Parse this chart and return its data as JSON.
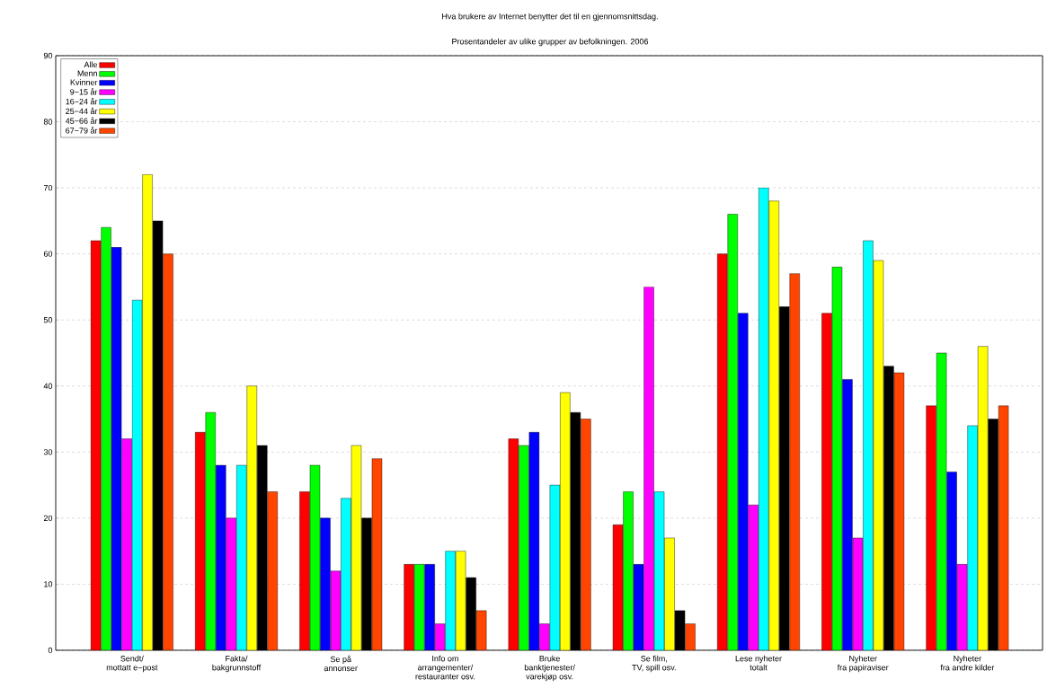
{
  "chart_data": {
    "type": "bar",
    "title": "Hva brukere av  Internet benytter det til en gjennomsnittsdag.",
    "subtitle": "Prosentandeler av ulike grupper av befolkningen. 2006",
    "categories": [
      "Sendt/\nmottatt e−post",
      "Fakta/\nbakgrunnstoff",
      "Se på\nannonser",
      "Info om\narrangementer/\nrestauranter osv.",
      "Bruke\nbanktjenester/\nvarekjøp osv.",
      "Se film,\nTV, spill osv.",
      "Lese nyheter\ntotalt",
      "Nyheter\nfra papiraviser",
      "Nyheter\nfra andre kilder"
    ],
    "series": [
      {
        "name": "Alle",
        "color": "#ff0000",
        "values": [
          62,
          33,
          24,
          13,
          32,
          19,
          60,
          51,
          37
        ]
      },
      {
        "name": "Menn",
        "color": "#00ff00",
        "values": [
          64,
          36,
          28,
          13,
          31,
          24,
          66,
          58,
          45
        ]
      },
      {
        "name": "Kvinner",
        "color": "#0000ff",
        "values": [
          61,
          28,
          20,
          13,
          33,
          13,
          51,
          41,
          27
        ]
      },
      {
        "name": "9−15 år",
        "color": "#ff00ff",
        "values": [
          32,
          20,
          12,
          4,
          4,
          55,
          22,
          17,
          13
        ]
      },
      {
        "name": "16−24 år",
        "color": "#00ffff",
        "values": [
          53,
          28,
          23,
          15,
          25,
          24,
          70,
          62,
          34
        ]
      },
      {
        "name": "25−44 år",
        "color": "#ffff00",
        "values": [
          72,
          40,
          31,
          15,
          39,
          17,
          68,
          59,
          46
        ]
      },
      {
        "name": "45−66 år",
        "color": "#000000",
        "values": [
          65,
          31,
          20,
          11,
          36,
          6,
          52,
          43,
          35
        ]
      },
      {
        "name": "67−79 år",
        "color": "#ff4500",
        "values": [
          60,
          24,
          29,
          6,
          35,
          4,
          57,
          42,
          37
        ]
      }
    ],
    "ylim": [
      0,
      90
    ],
    "yticks": [
      0,
      10,
      20,
      30,
      40,
      50,
      60,
      70,
      80,
      90
    ],
    "grid": "y",
    "legend": "top left"
  }
}
